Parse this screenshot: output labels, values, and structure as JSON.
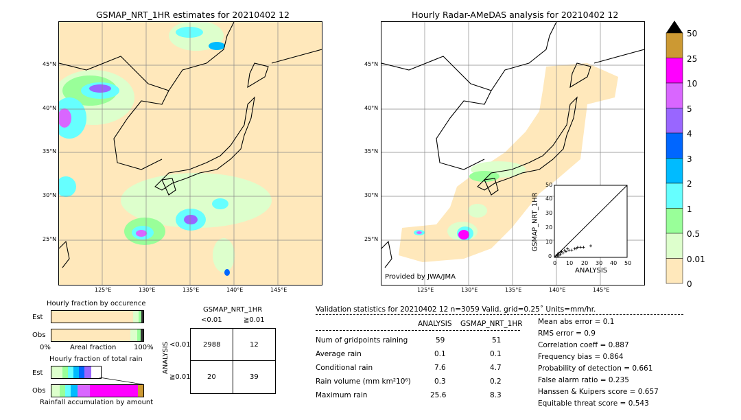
{
  "left_map": {
    "title": "GSMAP_NRT_1HR estimates for 20210402 12",
    "lat_labels": [
      "45°N",
      "40°N",
      "35°N",
      "30°N",
      "25°N"
    ],
    "lon_labels": [
      "125°E",
      "130°E",
      "135°E",
      "140°E",
      "145°E"
    ]
  },
  "right_map": {
    "title": "Hourly Radar-AMeDAS analysis for 20210402 12",
    "lat_labels": [
      "45°N",
      "40°N",
      "35°N",
      "30°N",
      "25°N"
    ],
    "lon_labels": [
      "125°E",
      "130°E",
      "135°E",
      "140°E",
      "145°E"
    ],
    "credit": "Provided by JWA/JMA"
  },
  "inset_scatter": {
    "ylabel": "GSMAP_NRT_1HR",
    "xlabel": "ANALYSIS",
    "ticks": [
      "0",
      "10",
      "20",
      "30",
      "40",
      "50"
    ]
  },
  "colorbar": {
    "labels": [
      "50",
      "25",
      "10",
      "5",
      "4",
      "3",
      "2",
      "1",
      "0.5",
      "0.01",
      "0"
    ],
    "colors": [
      "#cc9933",
      "#ff00ff",
      "#d966ff",
      "#9966ff",
      "#0066ff",
      "#00bbff",
      "#66ffff",
      "#99ff99",
      "#ddffcc",
      "#ffe8bb"
    ],
    "over_color": "#000000"
  },
  "occurrence": {
    "title": "Hourly fraction by occurence",
    "rows": [
      "Est",
      "Obs"
    ],
    "axis_left": "0%",
    "axis_mid": "Areal fraction",
    "axis_right": "100%"
  },
  "total_rain": {
    "title": "Hourly fraction of total rain",
    "rows": [
      "Est",
      "Obs"
    ],
    "caption": "Rainfall accumulation by amount"
  },
  "contingency": {
    "title": "GSMAP_NRT_1HR",
    "col_headers": [
      "<0.01",
      "≧0.01"
    ],
    "row_headers": [
      "<0.01",
      "≧0.01"
    ],
    "side_label": "ANALYSIS",
    "cells": [
      [
        "2988",
        "12"
      ],
      [
        "20",
        "39"
      ]
    ]
  },
  "validation": {
    "header": "Validation statistics for 20210402 12  n=3059 Valid. grid=0.25˚ Units=mm/hr.",
    "col_analysis": "ANALYSIS",
    "col_gsmap": "GSMAP_NRT_1HR",
    "rows": [
      {
        "label": "Num of gridpoints raining",
        "analysis": "59",
        "gsmap": "51"
      },
      {
        "label": "Average rain",
        "analysis": "0.1",
        "gsmap": "0.1"
      },
      {
        "label": "Conditional rain",
        "analysis": "7.6",
        "gsmap": "4.7"
      },
      {
        "label": "Rain volume (mm km²10⁶)",
        "analysis": "0.3",
        "gsmap": "0.2"
      },
      {
        "label": "Maximum rain",
        "analysis": "25.6",
        "gsmap": "8.3"
      }
    ],
    "scores": [
      "Mean abs error =    0.1",
      "RMS error =    0.9",
      "Correlation coeff =  0.887",
      "Frequency bias =  0.864",
      "Probability of detection =  0.661",
      "False alarm ratio =  0.235",
      "Hanssen & Kuipers score =  0.657",
      "Equitable threat score =  0.543"
    ]
  },
  "chart_data": [
    {
      "type": "scatter",
      "title": "",
      "xlabel": "ANALYSIS",
      "ylabel": "GSMAP_NRT_1HR",
      "xlim": [
        0,
        50
      ],
      "ylim": [
        0,
        50
      ],
      "points": [
        [
          1,
          1
        ],
        [
          2,
          2
        ],
        [
          3,
          3
        ],
        [
          4,
          2
        ],
        [
          5,
          4
        ],
        [
          6,
          3
        ],
        [
          8,
          4
        ],
        [
          10,
          5
        ],
        [
          12,
          5
        ],
        [
          14,
          6
        ],
        [
          15,
          6
        ],
        [
          16,
          7
        ],
        [
          18,
          7
        ],
        [
          20,
          7
        ],
        [
          25,
          8
        ],
        [
          2,
          1
        ],
        [
          3,
          1
        ],
        [
          4,
          3
        ],
        [
          7,
          5
        ],
        [
          9,
          6
        ]
      ]
    }
  ]
}
